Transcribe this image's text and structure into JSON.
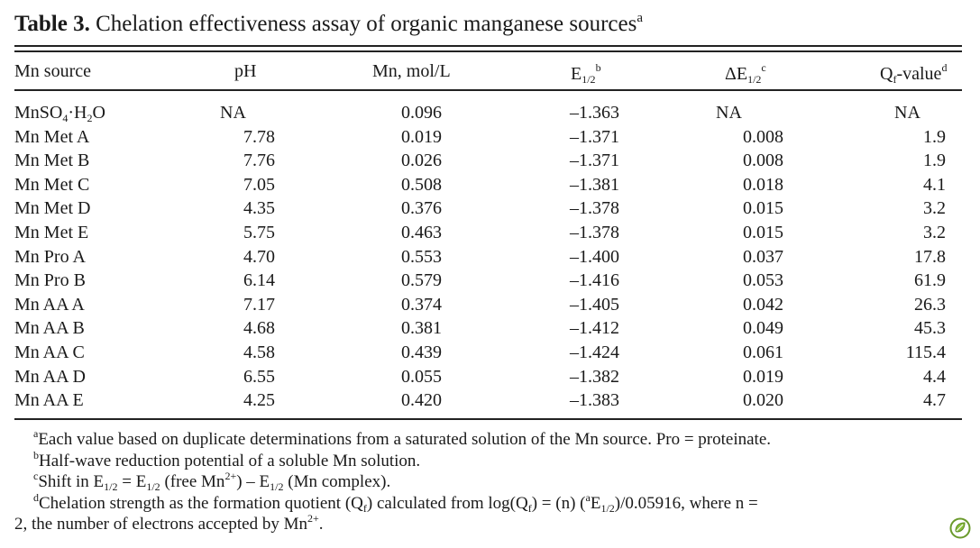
{
  "title": {
    "label": "Table 3.",
    "text": "Chelation effectiveness assay of organic manganese sources",
    "footnote_mark": "a"
  },
  "headers": {
    "mn_source": "Mn source",
    "ph": "pH",
    "mn_mol": "Mn, mol/L",
    "e12": "E",
    "e12_sub": "1/2",
    "e12_sup": "b",
    "de12": "ΔE",
    "de12_sub": "1/2",
    "de12_sup": "c",
    "qf_q": "Q",
    "qf_sub": "f",
    "qf_rest": "-value",
    "qf_sup": "d"
  },
  "first_row": {
    "source_main": "MnSO",
    "source_sub": "4",
    "source_mid": "·H",
    "source_sub2": "2",
    "source_end": "O",
    "ph": "NA",
    "mn": "0.096",
    "e12": "–1.363",
    "de12": "NA",
    "qf": "NA"
  },
  "rows": [
    {
      "source": "Mn Met A",
      "ph": "7.78",
      "mn": "0.019",
      "e12": "–1.371",
      "de12": "0.008",
      "qf": "1.9"
    },
    {
      "source": "Mn Met B",
      "ph": "7.76",
      "mn": "0.026",
      "e12": "–1.371",
      "de12": "0.008",
      "qf": "1.9"
    },
    {
      "source": "Mn Met C",
      "ph": "7.05",
      "mn": "0.508",
      "e12": "–1.381",
      "de12": "0.018",
      "qf": "4.1"
    },
    {
      "source": "Mn Met D",
      "ph": "4.35",
      "mn": "0.376",
      "e12": "–1.378",
      "de12": "0.015",
      "qf": "3.2"
    },
    {
      "source": "Mn Met E",
      "ph": "5.75",
      "mn": "0.463",
      "e12": "–1.378",
      "de12": "0.015",
      "qf": "3.2"
    },
    {
      "source": "Mn Pro A",
      "ph": "4.70",
      "mn": "0.553",
      "e12": "–1.400",
      "de12": "0.037",
      "qf": "17.8"
    },
    {
      "source": "Mn Pro B",
      "ph": "6.14",
      "mn": "0.579",
      "e12": "–1.416",
      "de12": "0.053",
      "qf": "61.9"
    },
    {
      "source": "Mn AA A",
      "ph": "7.17",
      "mn": "0.374",
      "e12": "–1.405",
      "de12": "0.042",
      "qf": "26.3"
    },
    {
      "source": "Mn AA B",
      "ph": "4.68",
      "mn": "0.381",
      "e12": "–1.412",
      "de12": "0.049",
      "qf": "45.3"
    },
    {
      "source": "Mn AA C",
      "ph": "4.58",
      "mn": "0.439",
      "e12": "–1.424",
      "de12": "0.061",
      "qf": "115.4"
    },
    {
      "source": "Mn AA D",
      "ph": "6.55",
      "mn": "0.055",
      "e12": "–1.382",
      "de12": "0.019",
      "qf": "4.4"
    },
    {
      "source": "Mn AA E",
      "ph": "4.25",
      "mn": "0.420",
      "e12": "–1.383",
      "de12": "0.020",
      "qf": "4.7"
    }
  ],
  "footnotes": {
    "a_mark": "a",
    "a_text": "Each value based on duplicate determinations from a saturated solution of the Mn source. Pro = proteinate.",
    "b_mark": "b",
    "b_text": "Half-wave reduction potential of a soluble Mn solution.",
    "c_mark": "c",
    "c_1": "Shift in E",
    "c_sub1": "1/2",
    "c_2": " = E",
    "c_sub2": "1/2",
    "c_3": " (free Mn",
    "c_sup3": "2+",
    "c_4": ") – E",
    "c_sub4": "1/2",
    "c_5": " (Mn complex).",
    "d_mark": "d",
    "d_1": "Chelation strength as the formation quotient (Q",
    "d_sub1": "f",
    "d_2": ") calculated from log(Q",
    "d_sub2": "f",
    "d_3": ") = (n) (",
    "d_sup3": "a",
    "d_4": "E",
    "d_sub4": "1/2",
    "d_5": ")/0.05916, where n =",
    "d_6": "2, the number of electrons accepted by Mn",
    "d_sup6": "2+",
    "d_7": "."
  }
}
